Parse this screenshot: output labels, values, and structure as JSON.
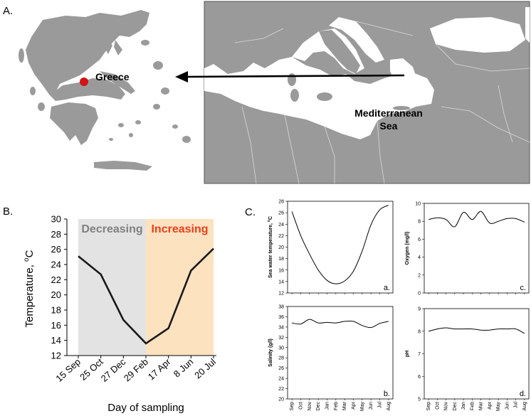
{
  "panels": {
    "a_label": "A.",
    "b_label": "B.",
    "c_label": "C."
  },
  "map": {
    "greece_label": "Greece",
    "sea_label_line1": "Mediterranean",
    "sea_label_line2": "Sea",
    "colors": {
      "land": "#9a9a9a",
      "sea": "#ffffff",
      "marker": "#d11414"
    }
  },
  "chart_data": [
    {
      "id": "B",
      "type": "line",
      "title": "",
      "xlabel": "Day of sampling",
      "ylabel": "Temperature, °C",
      "ylabel_main": "Temperature, ",
      "ylabel_sup": "o",
      "ylabel_unit": "C",
      "categories": [
        "15 Sep",
        "25 Oct",
        "27 Dec",
        "29 Feb",
        "17 Apr",
        "8 Jun",
        "20 Jul"
      ],
      "values": [
        25.1,
        22.7,
        16.7,
        13.6,
        15.6,
        23.2,
        26.1
      ],
      "ylim": [
        12,
        30
      ],
      "yticks": [
        12,
        14,
        16,
        18,
        20,
        22,
        24,
        26,
        28,
        30
      ],
      "bands": [
        {
          "label": "Decreasing",
          "from": 0,
          "to": 3,
          "color": "#e3e3e3",
          "text_color": "#808080"
        },
        {
          "label": "Increasing",
          "from": 3,
          "to": 6,
          "color": "#fde2c0",
          "text_color": "#e8401c"
        }
      ],
      "line_color": "#1a1a1a"
    },
    {
      "id": "C.a",
      "type": "line",
      "tag": "a.",
      "ylabel": "Sea water temperature, °C",
      "ylabel_text": "Sea water temperature, ",
      "ylabel_sup": "o",
      "ylabel_unit": "C",
      "months": [
        "Sep",
        "Oct",
        "Nov",
        "Dec",
        "Jan",
        "Feb",
        "Mar",
        "Apr",
        "May",
        "Jun",
        "Jul",
        "Aug"
      ],
      "values": [
        26.2,
        22.0,
        18.8,
        16.0,
        14.2,
        13.6,
        14.1,
        15.8,
        19.3,
        23.9,
        26.5,
        27.3
      ],
      "ylim": [
        12,
        28
      ],
      "yticks": [
        12,
        14,
        16,
        18,
        20,
        22,
        24,
        26,
        28
      ]
    },
    {
      "id": "C.b",
      "type": "line",
      "tag": "b.",
      "ylabel": "Salinity (g/l)",
      "months": [
        "Sep",
        "Oct",
        "Nov",
        "Dec",
        "Jan",
        "Feb",
        "Mar",
        "Apr",
        "May",
        "Jun",
        "Jul",
        "Aug"
      ],
      "values": [
        34.8,
        34.6,
        35.5,
        34.8,
        34.9,
        34.8,
        35.1,
        35.1,
        34.3,
        33.9,
        34.7,
        35.1
      ],
      "ylim": [
        20,
        38
      ],
      "yticks": [
        20,
        22,
        24,
        26,
        28,
        30,
        32,
        34,
        36,
        38
      ]
    },
    {
      "id": "C.c",
      "type": "line",
      "tag": "c.",
      "ylabel": "Oxygen (mg/l)",
      "months": [
        "Sep",
        "Oct",
        "Nov",
        "Dec",
        "Jan",
        "Feb",
        "Mar",
        "Apr",
        "May",
        "Jun",
        "Jul",
        "Aug"
      ],
      "values": [
        8.2,
        8.4,
        8.2,
        7.4,
        9.0,
        8.2,
        9.1,
        7.8,
        8.0,
        8.3,
        8.3,
        7.9
      ],
      "ylim": [
        0,
        10
      ],
      "yticks": [
        0,
        2,
        4,
        6,
        8,
        10
      ]
    },
    {
      "id": "C.d",
      "type": "line",
      "tag": "d.",
      "ylabel": "pH",
      "months": [
        "Sep",
        "Oct",
        "Nov",
        "Dec",
        "Jan",
        "Feb",
        "Mar",
        "Apr",
        "May",
        "Jun",
        "Jul",
        "Aug"
      ],
      "values": [
        8.0,
        8.1,
        8.15,
        8.1,
        8.1,
        8.1,
        8.05,
        8.05,
        8.1,
        8.1,
        8.1,
        7.9
      ],
      "ylim": [
        5,
        9
      ],
      "yticks": [
        5,
        6,
        7,
        8,
        9
      ]
    }
  ]
}
